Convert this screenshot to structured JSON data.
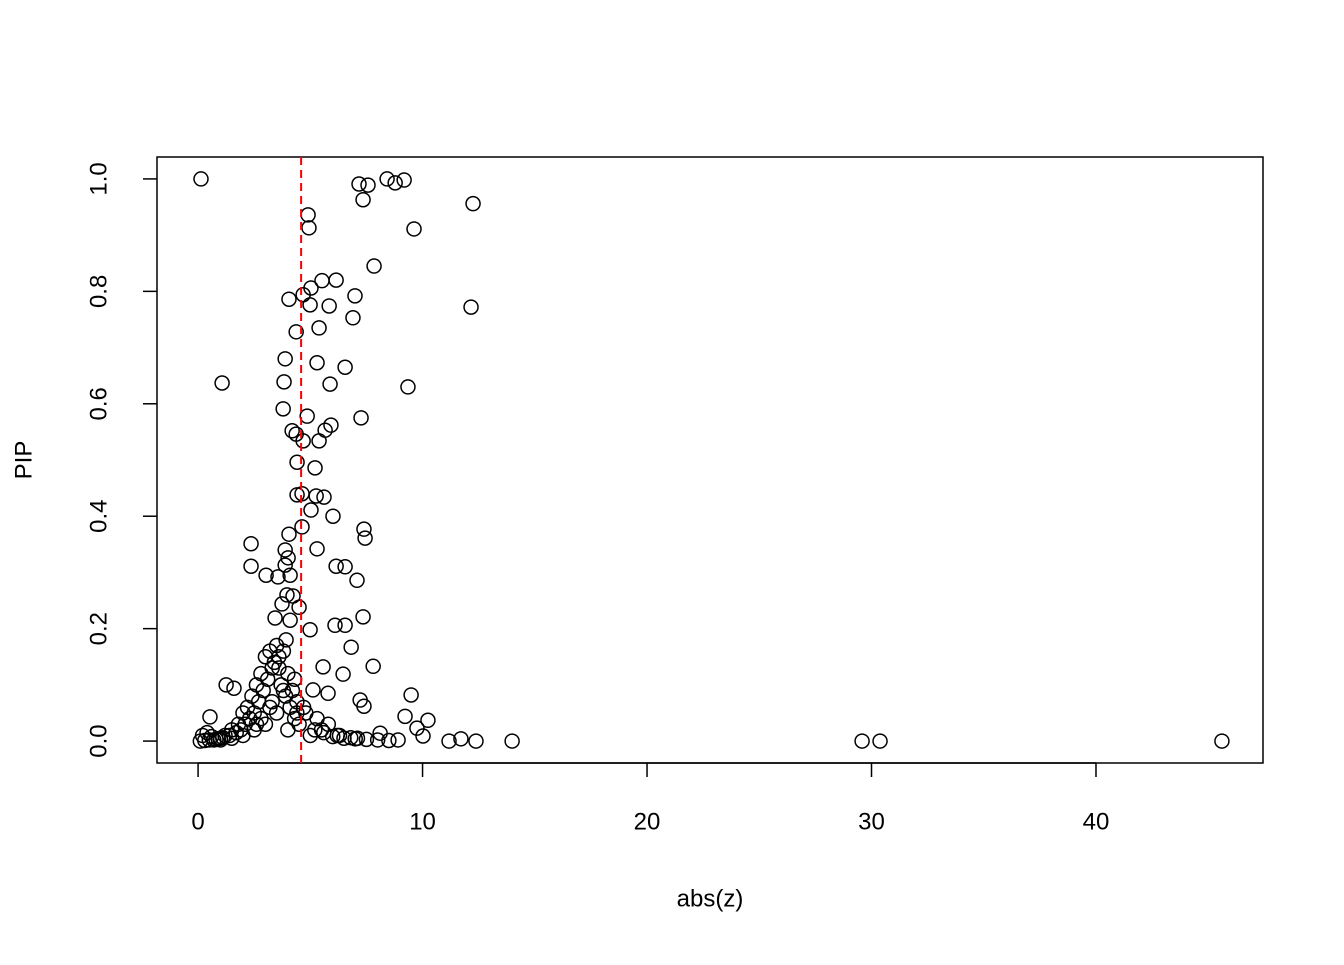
{
  "chart_data": {
    "type": "scatter",
    "x_label": "abs(z)",
    "y_label": "PIP",
    "xlim": [
      -1.83,
      47.44
    ],
    "ylim": [
      -0.039,
      1.039
    ],
    "xticks": [
      0,
      10,
      20,
      30,
      40
    ],
    "yticks": [
      {
        "value": 0,
        "label": "0.0"
      },
      0.2,
      0.4,
      0.6,
      0.8,
      {
        "value": 1,
        "label": "1.0"
      }
    ],
    "marker_color": "#000000",
    "reference_line": {
      "x": 4.59,
      "color": "#ff0000"
    },
    "x": [
      0.13,
      7.17,
      7.57,
      8.42,
      8.78,
      9.18,
      7.35,
      12.25,
      4.9,
      4.94,
      9.62,
      7.84,
      5.52,
      6.15,
      5.03,
      4.05,
      4.68,
      6.99,
      4.99,
      5.84,
      12.16,
      6.9,
      5.39,
      4.37,
      3.88,
      5.3,
      6.55,
      1.07,
      3.83,
      5.88,
      9.35,
      3.79,
      4.86,
      7.26,
      5.92,
      5.66,
      4.19,
      4.37,
      4.68,
      5.39,
      4.41,
      5.21,
      4.41,
      4.63,
      5.26,
      5.61,
      5.03,
      6.01,
      4.63,
      7.39,
      4.05,
      7.44,
      2.36,
      5.3,
      3.88,
      4.01,
      2.36,
      3.88,
      6.15,
      6.55,
      3.03,
      3.56,
      4.1,
      7.08,
      3.96,
      4.23,
      3.74,
      4.5,
      7.35,
      3.43,
      4.1,
      4.99,
      6.1,
      6.55,
      3.92,
      6.82,
      5.57,
      7.8,
      1.25,
      1.6,
      6.46,
      9.49,
      5.12,
      5.79,
      7.22,
      7.39,
      9.22,
      10.24,
      0.53,
      9.75,
      10.02,
      11.18,
      11.71,
      12.38,
      13.99,
      29.58,
      30.38,
      45.61,
      8.11,
      8.91,
      3.0,
      3.2,
      2.8,
      3.5,
      3.4,
      2.6,
      2.4,
      2.2,
      2.0,
      1.8,
      1.5,
      1.2,
      1.0,
      0.8,
      0.5,
      0.3,
      0.1,
      0.2,
      0.4,
      0.6,
      3.1,
      3.3,
      3.6,
      3.8,
      4.0,
      4.2,
      4.4,
      2.9,
      2.7,
      2.5,
      3.7,
      3.9,
      4.1,
      4.3,
      2.3,
      2.1,
      1.9,
      1.7,
      1.4,
      1.1,
      0.9,
      0.7,
      3.5,
      3.0,
      2.5,
      2.0,
      1.5,
      1.0,
      4.0,
      4.5,
      5.0,
      5.5,
      6.0,
      6.5,
      7.0,
      7.5,
      8.0,
      8.5,
      4.8,
      5.3,
      5.8,
      6.3,
      6.8,
      3.3,
      2.8,
      4.3,
      3.8,
      3.2,
      2.6,
      3.6,
      4.4,
      5.2,
      6.2,
      7.1,
      4.7,
      5.6
    ],
    "values": [
      1.0,
      0.991,
      0.989,
      1.0,
      0.993,
      0.998,
      0.963,
      0.956,
      0.936,
      0.913,
      0.911,
      0.845,
      0.819,
      0.82,
      0.806,
      0.786,
      0.794,
      0.792,
      0.776,
      0.774,
      0.772,
      0.753,
      0.735,
      0.728,
      0.68,
      0.673,
      0.665,
      0.637,
      0.639,
      0.635,
      0.63,
      0.591,
      0.578,
      0.575,
      0.562,
      0.553,
      0.552,
      0.546,
      0.534,
      0.534,
      0.496,
      0.486,
      0.438,
      0.44,
      0.436,
      0.434,
      0.411,
      0.4,
      0.381,
      0.377,
      0.368,
      0.361,
      0.351,
      0.342,
      0.34,
      0.326,
      0.311,
      0.313,
      0.311,
      0.31,
      0.295,
      0.292,
      0.295,
      0.286,
      0.26,
      0.258,
      0.244,
      0.238,
      0.221,
      0.219,
      0.215,
      0.198,
      0.206,
      0.206,
      0.18,
      0.167,
      0.132,
      0.133,
      0.1,
      0.094,
      0.119,
      0.082,
      0.091,
      0.085,
      0.073,
      0.062,
      0.044,
      0.037,
      0.043,
      0.023,
      0.009,
      0,
      0.004,
      0,
      0,
      0,
      0,
      0,
      0.014,
      0.002,
      0.15,
      0.16,
      0.12,
      0.17,
      0.14,
      0.1,
      0.08,
      0.06,
      0.05,
      0.03,
      0.02,
      0.01,
      0.005,
      0.003,
      0.002,
      0.001,
      0,
      0.01,
      0.015,
      0.008,
      0.11,
      0.13,
      0.15,
      0.16,
      0.12,
      0.09,
      0.07,
      0.09,
      0.07,
      0.05,
      0.1,
      0.08,
      0.06,
      0.04,
      0.04,
      0.03,
      0.02,
      0.015,
      0.01,
      0.006,
      0.004,
      0.002,
      0.05,
      0.03,
      0.02,
      0.01,
      0.005,
      0.002,
      0.02,
      0.03,
      0.01,
      0.02,
      0.008,
      0.005,
      0.004,
      0.003,
      0.002,
      0.001,
      0.05,
      0.04,
      0.03,
      0.01,
      0.006,
      0.07,
      0.04,
      0.11,
      0.09,
      0.06,
      0.03,
      0.13,
      0.05,
      0.02,
      0.01,
      0.005,
      0.06,
      0.015
    ]
  }
}
